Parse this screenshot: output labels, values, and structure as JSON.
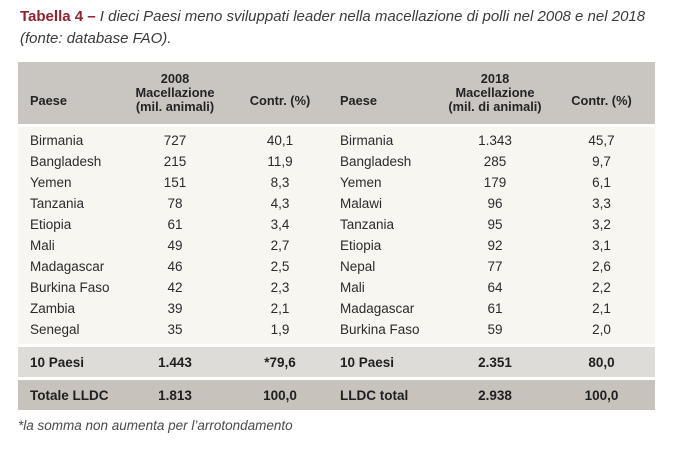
{
  "caption": {
    "label": "Tabella 4 – ",
    "text": "I dieci Paesi meno sviluppati leader nella macellazione di polli nel 2008 e nel 2018 (fonte: database FAO)."
  },
  "table": {
    "header": {
      "left": {
        "year": "2008",
        "country": "Paese",
        "value_line1": "Macellazione",
        "value_line2": "(mil. animali)",
        "share": "Contr. (%)"
      },
      "right": {
        "year": "2018",
        "country": "Paese",
        "value_line1": "Macellazione",
        "value_line2": "(mil. di animali)",
        "share": "Contr. (%)"
      }
    },
    "body_rows": [
      {
        "left": [
          "Birmania",
          "727",
          "40,1"
        ],
        "right": [
          "Birmania",
          "1.343",
          "45,7"
        ]
      },
      {
        "left": [
          "Bangladesh",
          "215",
          "11,9"
        ],
        "right": [
          "Bangladesh",
          "285",
          "9,7"
        ]
      },
      {
        "left": [
          "Yemen",
          "151",
          "8,3"
        ],
        "right": [
          "Yemen",
          "179",
          "6,1"
        ]
      },
      {
        "left": [
          "Tanzania",
          "78",
          "4,3"
        ],
        "right": [
          "Malawi",
          "96",
          "3,3"
        ]
      },
      {
        "left": [
          "Etiopia",
          "61",
          "3,4"
        ],
        "right": [
          "Tanzania",
          "95",
          "3,2"
        ]
      },
      {
        "left": [
          "Mali",
          "49",
          "2,7"
        ],
        "right": [
          "Etiopia",
          "92",
          "3,1"
        ]
      },
      {
        "left": [
          "Madagascar",
          "46",
          "2,5"
        ],
        "right": [
          "Nepal",
          "77",
          "2,6"
        ]
      },
      {
        "left": [
          "Burkina Faso",
          "42",
          "2,3"
        ],
        "right": [
          "Mali",
          "64",
          "2,2"
        ]
      },
      {
        "left": [
          "Zambia",
          "39",
          "2,1"
        ],
        "right": [
          "Madagascar",
          "61",
          "2,1"
        ]
      },
      {
        "left": [
          "Senegal",
          "35",
          "1,9"
        ],
        "right": [
          "Burkina Faso",
          "59",
          "2,0"
        ]
      }
    ],
    "subtotal_row": {
      "left": [
        "10 Paesi",
        "1.443",
        "*79,6"
      ],
      "right": [
        "10 Paesi",
        "2.351",
        "80,0"
      ]
    },
    "total_row": {
      "left": [
        "Totale LLDC",
        "1.813",
        "100,0"
      ],
      "right": [
        "LLDC total",
        "2.938",
        "100,0"
      ]
    }
  },
  "footnote": "*la somma non aumenta per l’arrotondamento",
  "colors": {
    "accent_red": "#8e2430",
    "header_bg": "#c9c5c0",
    "body_bg": "#f8f6f1",
    "subtotal_bg": "#dddcd8",
    "total_bg": "#c7c2bb"
  }
}
